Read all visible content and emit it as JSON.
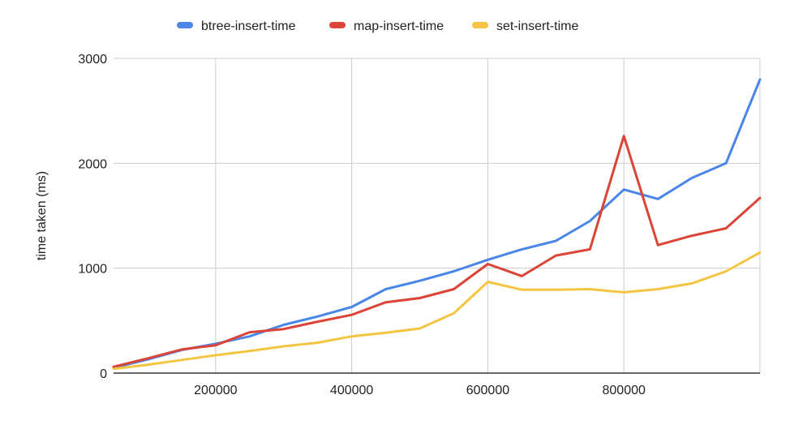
{
  "chart_data": {
    "type": "line",
    "title": "",
    "xlabel": "",
    "ylabel": "time taken (ms)",
    "xlim": [
      50000,
      1000000
    ],
    "ylim": [
      0,
      3000
    ],
    "x_ticks": [
      "200000",
      "400000",
      "600000",
      "800000"
    ],
    "y_ticks": [
      "0",
      "1000",
      "2000",
      "3000"
    ],
    "grid": true,
    "legend": "top-center",
    "x": [
      50000,
      100000,
      150000,
      200000,
      250000,
      300000,
      350000,
      400000,
      450000,
      500000,
      550000,
      600000,
      650000,
      700000,
      750000,
      800000,
      850000,
      900000,
      950000,
      1000000
    ],
    "series": [
      {
        "name": "btree-insert-time",
        "color": "#4a86e8",
        "values": [
          50,
          130,
          220,
          280,
          350,
          460,
          540,
          630,
          800,
          880,
          970,
          1080,
          1180,
          1260,
          1450,
          1750,
          1660,
          1860,
          2000,
          2800
        ]
      },
      {
        "name": "map-insert-time",
        "color": "#db4437",
        "values": [
          60,
          140,
          225,
          265,
          390,
          420,
          490,
          555,
          675,
          715,
          800,
          1040,
          925,
          1120,
          1180,
          2260,
          1220,
          1310,
          1380,
          1670
        ]
      },
      {
        "name": "set-insert-time",
        "color": "#f4c542",
        "values": [
          40,
          80,
          125,
          170,
          210,
          255,
          290,
          350,
          385,
          425,
          570,
          870,
          795,
          795,
          800,
          770,
          800,
          855,
          970,
          1150
        ]
      }
    ]
  }
}
